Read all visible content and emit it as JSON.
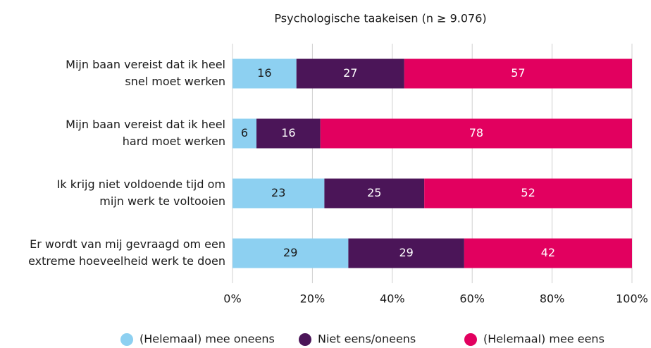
{
  "chart_data": {
    "type": "stacked-bar-horizontal",
    "title": "Psychologische taakeisen (n ≥ 9.076)",
    "categories": [
      [
        "Mijn baan vereist dat ik heel",
        "snel moet werken"
      ],
      [
        "Mijn baan vereist dat ik heel",
        "hard moet werken"
      ],
      [
        "Ik krijg niet voldoende tijd om",
        "mijn werk te voltooien"
      ],
      [
        "Er wordt van mij gevraagd om een",
        "extreme hoeveelheid werk te doen"
      ]
    ],
    "series": [
      {
        "name": "(Helemaal) mee oneens",
        "color": "#8dd0f1",
        "values": [
          16,
          6,
          23,
          29
        ]
      },
      {
        "name": "Niet eens/oneens",
        "color": "#4b1558",
        "values": [
          27,
          16,
          25,
          29
        ]
      },
      {
        "name": "(Helemaal) mee eens",
        "color": "#e2005f",
        "values": [
          57,
          78,
          52,
          42
        ]
      }
    ],
    "xlim": [
      0,
      100
    ],
    "xticks": [
      {
        "value": 0,
        "label": "0%"
      },
      {
        "value": 20,
        "label": "20%"
      },
      {
        "value": 40,
        "label": "40%"
      },
      {
        "value": 60,
        "label": "60%"
      },
      {
        "value": 80,
        "label": "80%"
      },
      {
        "value": 100,
        "label": "100%"
      }
    ],
    "grid": true,
    "legend": "bottom"
  }
}
